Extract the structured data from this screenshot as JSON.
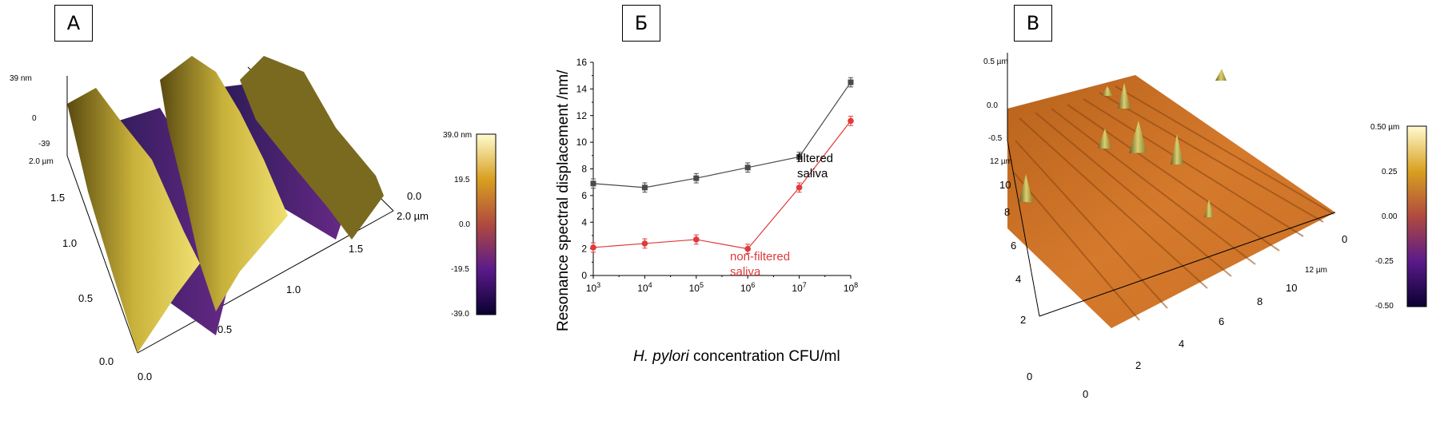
{
  "panels": {
    "a": {
      "label": "А"
    },
    "b": {
      "label": "Б"
    },
    "c": {
      "label": "В"
    }
  },
  "afm_a": {
    "z_labels": [
      "39 nm",
      "0",
      "-39"
    ],
    "left_axis": [
      "2.0 µm",
      "1.5",
      "1.0",
      "0.5",
      "0.0"
    ],
    "bottom_axis": [
      "0.0",
      "0.5",
      "1.0",
      "1.5",
      "2.0 µm"
    ],
    "right_axis": [
      "0.0"
    ],
    "colorbar": [
      "39.0 nm",
      "19.5",
      "0.0",
      "-19.5",
      "-39.0"
    ]
  },
  "afm_c": {
    "z_labels": [
      "0.5 µm",
      "0.0",
      "-0.5"
    ],
    "left_axis": [
      "12 µm",
      "10",
      "8",
      "6",
      "4",
      "2",
      "0"
    ],
    "bottom_axis": [
      "0",
      "2",
      "4",
      "6",
      "8",
      "10",
      "12 µm"
    ],
    "right_axis": [
      "0"
    ],
    "colorbar": [
      "0.50 µm",
      "0.25",
      "0.00",
      "-0.25",
      "-0.50"
    ]
  },
  "chart_data": {
    "type": "line",
    "xlabel_italic": "H. pylori",
    "xlabel_rest": " concentration CFU/ml",
    "ylabel": "Resonance spectral displacement /nm/",
    "x_scale": "log",
    "x": [
      1000,
      10000,
      100000,
      1000000,
      10000000,
      100000000
    ],
    "x_tick_labels": [
      "10",
      "10",
      "10",
      "10",
      "10",
      "10"
    ],
    "x_tick_exponents": [
      "3",
      "4",
      "5",
      "6",
      "7",
      "8"
    ],
    "ylim": [
      0,
      16
    ],
    "y_ticks": [
      "0",
      "2",
      "4",
      "6",
      "8",
      "10",
      "12",
      "14",
      "16"
    ],
    "series": [
      {
        "name": "filtered saliva",
        "label_line1": "filtered",
        "label_line2": "saliva",
        "color": "#4a4a4a",
        "values": [
          6.9,
          6.6,
          7.3,
          8.1,
          8.9,
          14.5
        ],
        "errors": [
          0.35,
          0.35,
          0.35,
          0.35,
          0.35,
          0.35
        ]
      },
      {
        "name": "non-filtered saliva",
        "label_line1": "non-filtered",
        "label_line2": "saliva",
        "color": "#e03a3a",
        "values": [
          2.1,
          2.4,
          2.7,
          2.0,
          6.6,
          11.6
        ],
        "errors": [
          0.35,
          0.35,
          0.35,
          0.35,
          0.35,
          0.35
        ]
      }
    ]
  }
}
